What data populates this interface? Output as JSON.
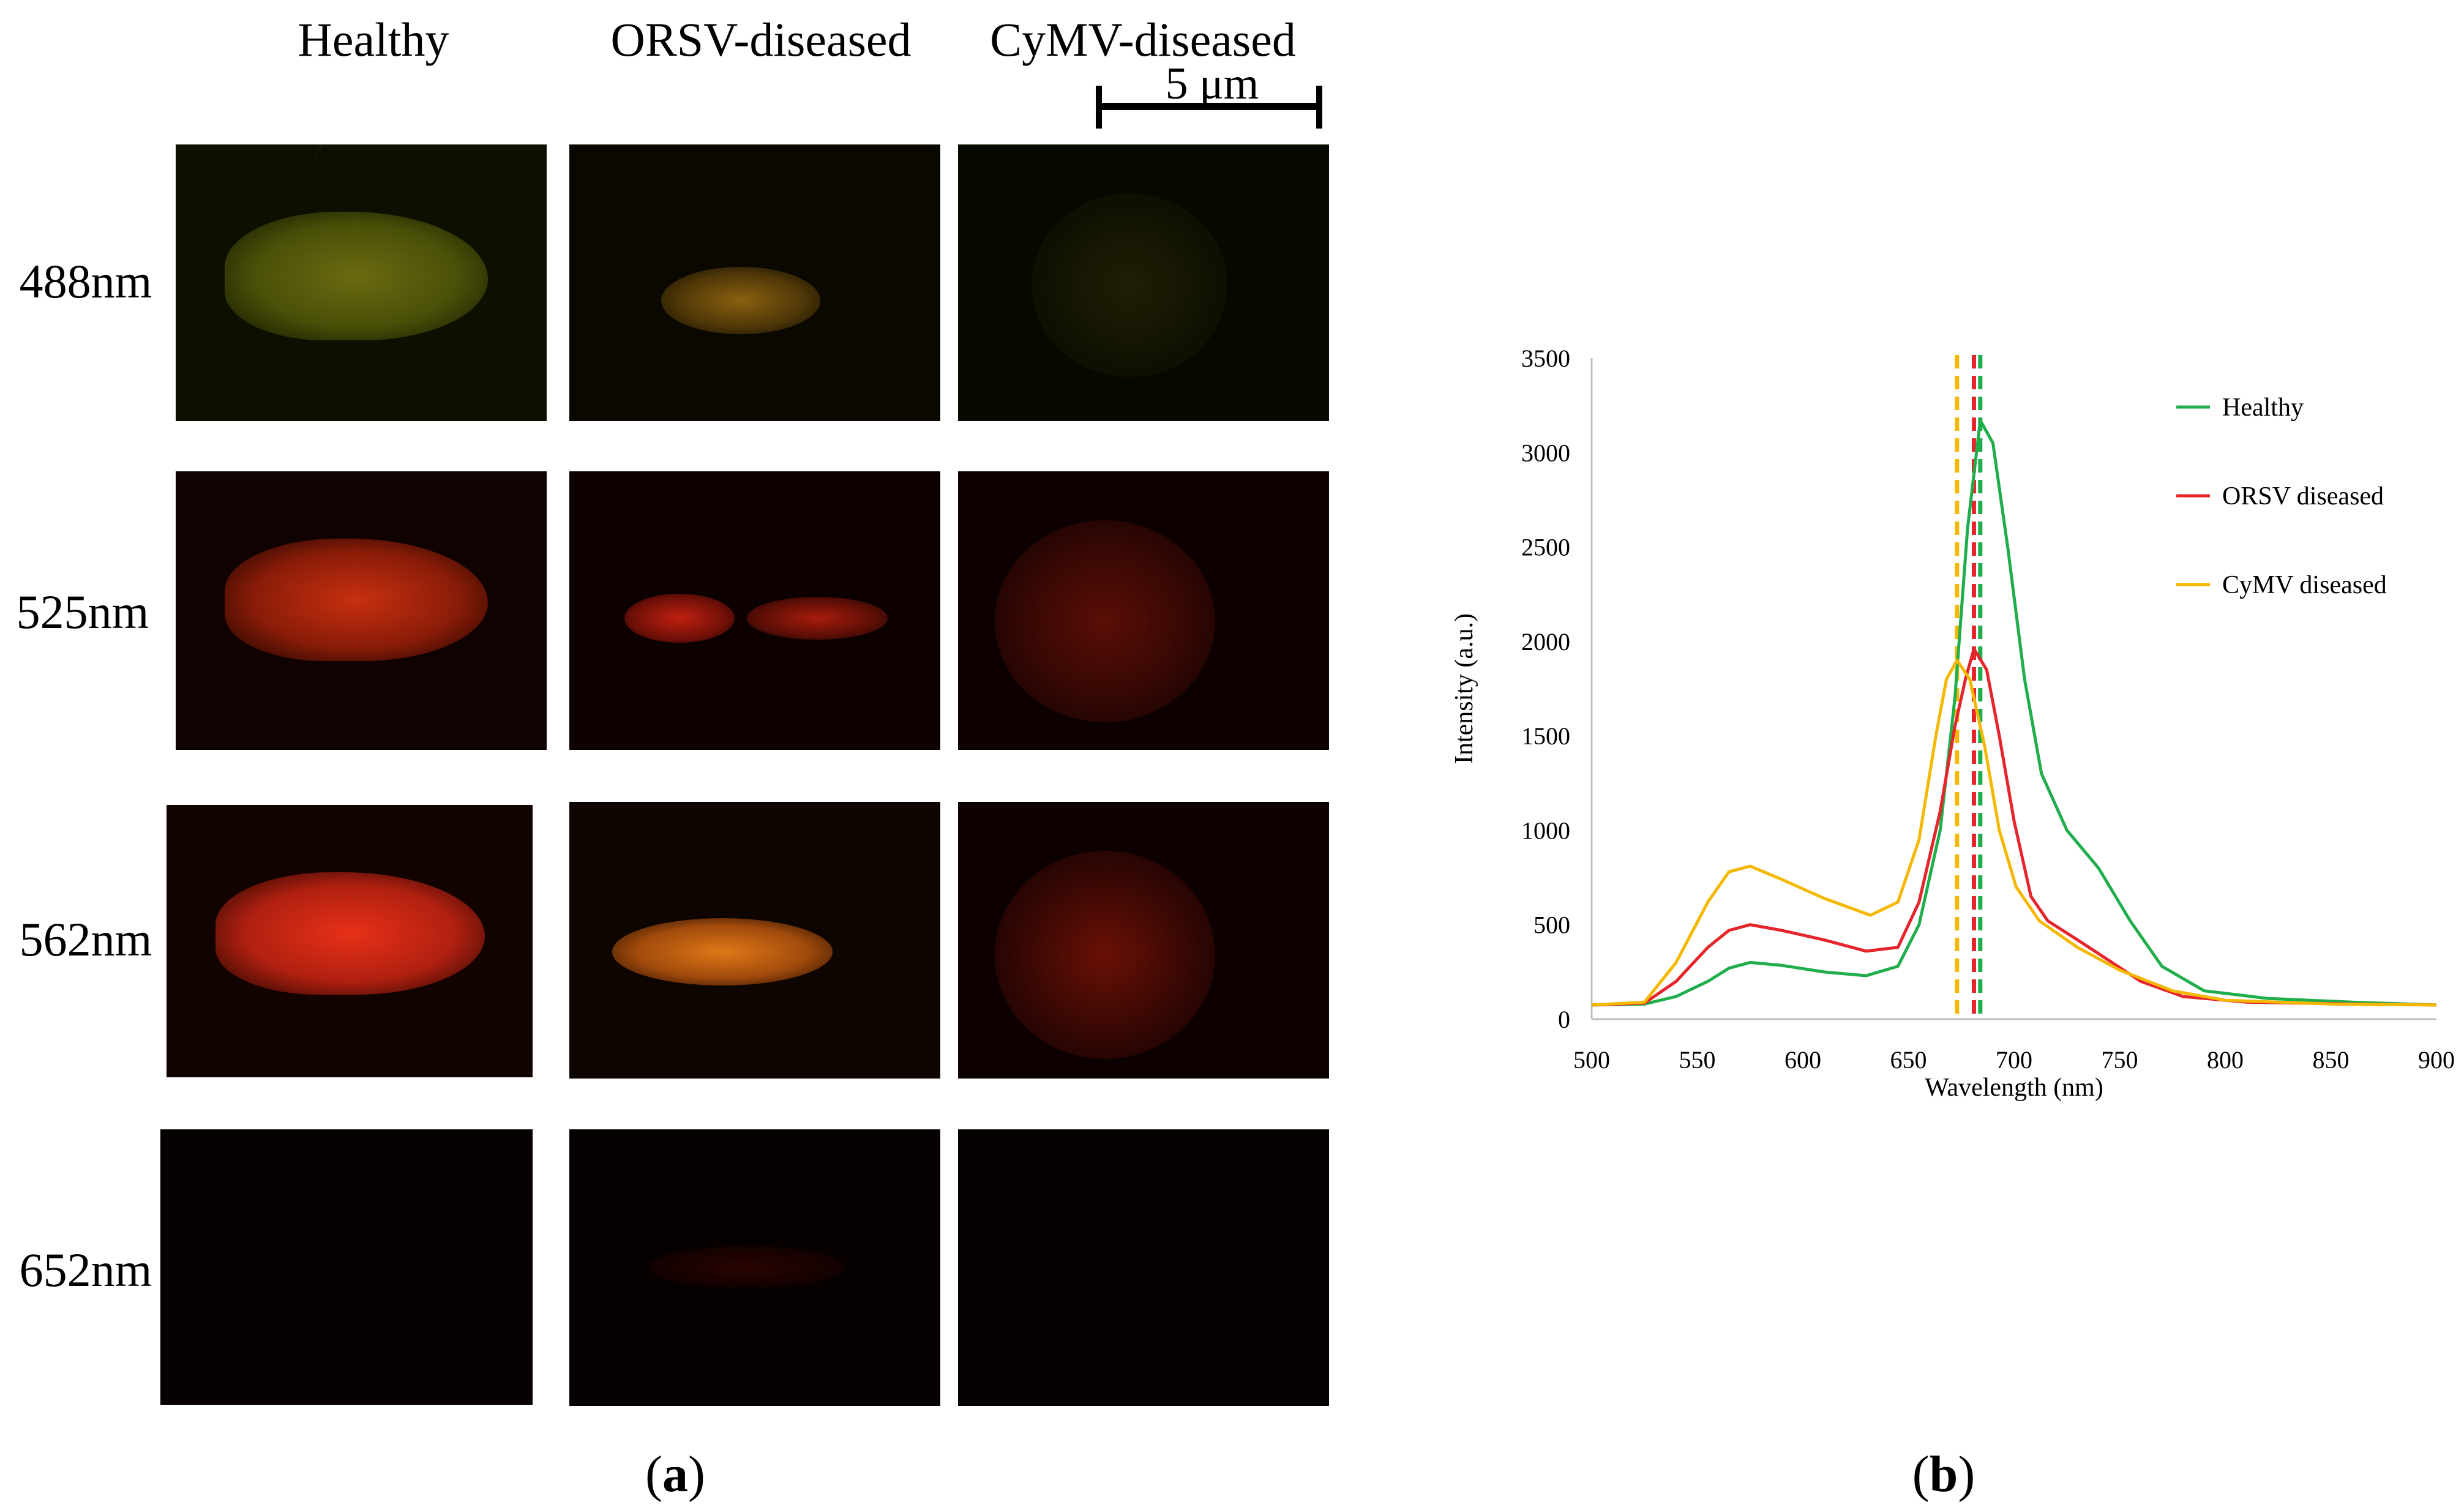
{
  "panel_a": {
    "columns": [
      "Healthy",
      "ORSV-diseased",
      "CyMV-diseased"
    ],
    "rows": [
      "488nm",
      "525nm",
      "562nm",
      "652nm"
    ],
    "scale_bar": "5 μm",
    "label_paren_open": "(",
    "label_letter": "a",
    "label_paren_close": ")"
  },
  "panel_b": {
    "label_paren_open": "(",
    "label_letter": "b",
    "label_paren_close": ")"
  },
  "chart_data": {
    "type": "line",
    "title": "",
    "xlabel": "Wavelength (nm)",
    "ylabel": "Intensity (a.u.)",
    "xlim": [
      500,
      900
    ],
    "ylim": [
      0,
      3500
    ],
    "xticks": [
      500,
      550,
      600,
      650,
      700,
      750,
      800,
      850,
      900
    ],
    "yticks": [
      0,
      500,
      1000,
      1500,
      2000,
      2500,
      3000,
      3500
    ],
    "grid": false,
    "legend_position": "right",
    "series": [
      {
        "name": "Healthy",
        "color": "#1fae4b",
        "peak_x": 684,
        "points": [
          [
            500,
            75
          ],
          [
            525,
            80
          ],
          [
            540,
            120
          ],
          [
            555,
            200
          ],
          [
            565,
            270
          ],
          [
            575,
            300
          ],
          [
            590,
            285
          ],
          [
            610,
            250
          ],
          [
            630,
            230
          ],
          [
            645,
            280
          ],
          [
            655,
            500
          ],
          [
            665,
            1000
          ],
          [
            672,
            1700
          ],
          [
            678,
            2600
          ],
          [
            684,
            3170
          ],
          [
            690,
            3050
          ],
          [
            697,
            2500
          ],
          [
            705,
            1800
          ],
          [
            713,
            1300
          ],
          [
            725,
            1000
          ],
          [
            740,
            800
          ],
          [
            755,
            520
          ],
          [
            770,
            280
          ],
          [
            790,
            150
          ],
          [
            820,
            110
          ],
          [
            860,
            90
          ],
          [
            900,
            75
          ]
        ]
      },
      {
        "name": "ORSV diseased",
        "color": "#e6242b",
        "peak_x": 681,
        "points": [
          [
            500,
            75
          ],
          [
            525,
            85
          ],
          [
            540,
            200
          ],
          [
            555,
            380
          ],
          [
            565,
            470
          ],
          [
            575,
            500
          ],
          [
            590,
            470
          ],
          [
            610,
            420
          ],
          [
            630,
            360
          ],
          [
            645,
            380
          ],
          [
            655,
            620
          ],
          [
            665,
            1100
          ],
          [
            672,
            1550
          ],
          [
            677,
            1800
          ],
          [
            681,
            1960
          ],
          [
            687,
            1850
          ],
          [
            693,
            1500
          ],
          [
            700,
            1050
          ],
          [
            708,
            650
          ],
          [
            716,
            520
          ],
          [
            730,
            420
          ],
          [
            745,
            310
          ],
          [
            760,
            200
          ],
          [
            780,
            120
          ],
          [
            810,
            90
          ],
          [
            860,
            80
          ],
          [
            900,
            75
          ]
        ]
      },
      {
        "name": "CyMV diseased",
        "color": "#f5b800",
        "peak_x": 673,
        "points": [
          [
            500,
            75
          ],
          [
            525,
            90
          ],
          [
            540,
            300
          ],
          [
            555,
            620
          ],
          [
            565,
            780
          ],
          [
            575,
            810
          ],
          [
            590,
            740
          ],
          [
            610,
            640
          ],
          [
            632,
            550
          ],
          [
            645,
            620
          ],
          [
            655,
            950
          ],
          [
            663,
            1500
          ],
          [
            668,
            1800
          ],
          [
            673,
            1900
          ],
          [
            679,
            1800
          ],
          [
            686,
            1450
          ],
          [
            693,
            1000
          ],
          [
            701,
            700
          ],
          [
            712,
            520
          ],
          [
            730,
            380
          ],
          [
            750,
            260
          ],
          [
            775,
            150
          ],
          [
            800,
            100
          ],
          [
            850,
            80
          ],
          [
            900,
            75
          ]
        ]
      }
    ]
  }
}
